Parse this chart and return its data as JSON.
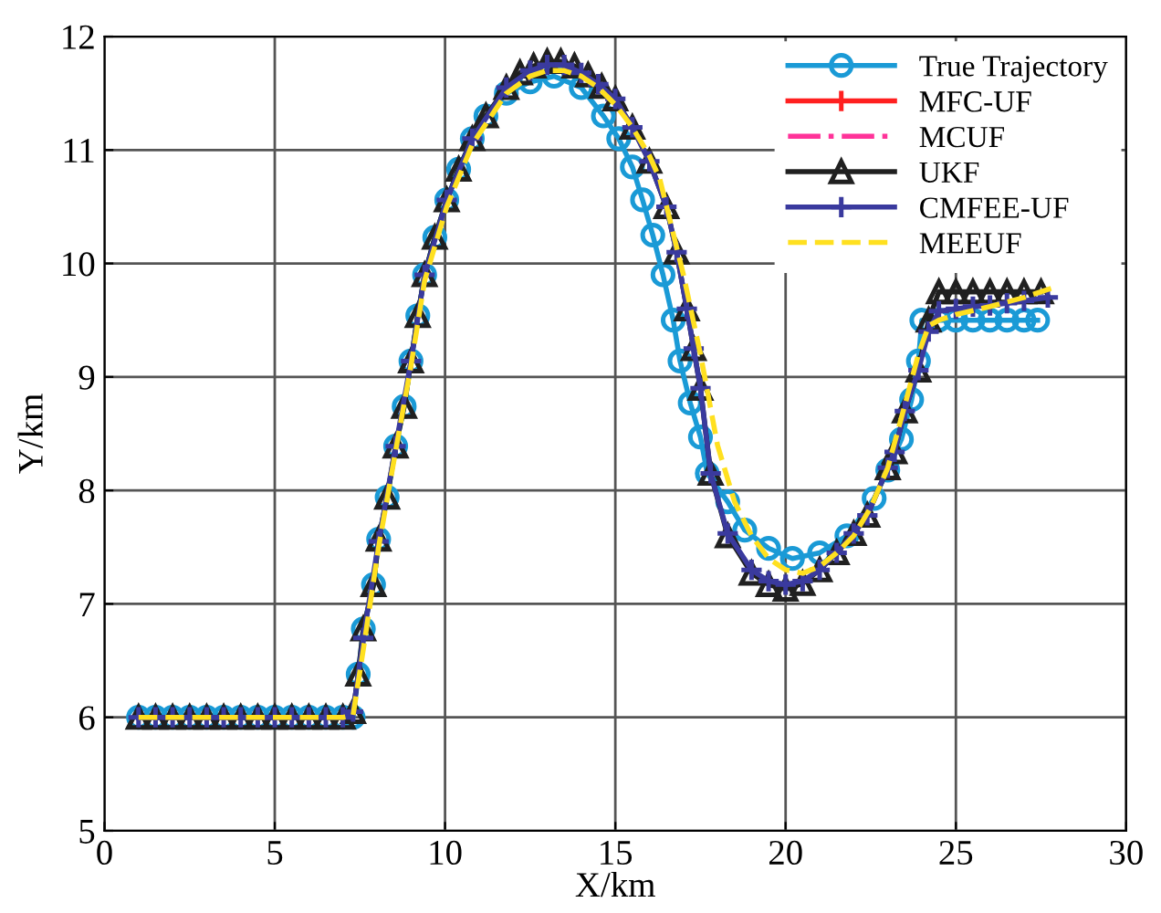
{
  "chart_data": {
    "type": "line",
    "xlabel": "X/km",
    "ylabel": "Y/km",
    "xlim": [
      0,
      30
    ],
    "ylim": [
      5,
      12
    ],
    "xticks": [
      0,
      5,
      10,
      15,
      20,
      25,
      30
    ],
    "yticks": [
      5,
      6,
      7,
      8,
      9,
      10,
      11,
      12
    ],
    "grid": true,
    "legend": "top right",
    "series": [
      {
        "name": "True Trajectory",
        "color": "#1a9ad6",
        "marker": "circle",
        "line_style": "solid",
        "x": [
          1,
          1.5,
          2,
          2.5,
          3,
          3.5,
          4,
          4.5,
          5,
          5.5,
          6,
          6.5,
          7,
          7.3,
          7.45,
          7.6,
          7.9,
          8.05,
          8.3,
          8.55,
          8.8,
          9.0,
          9.2,
          9.4,
          9.7,
          10.05,
          10.4,
          10.8,
          11.2,
          11.8,
          12.5,
          13.2,
          14,
          14.65,
          15.1,
          15.5,
          15.8,
          16.1,
          16.4,
          16.7,
          16.9,
          17.2,
          17.5,
          17.7,
          18.3,
          18.8,
          19.5,
          20.2,
          21,
          21.8,
          22.6,
          23,
          23.4,
          23.7,
          23.9,
          24.0,
          24.5,
          25,
          25.5,
          26,
          26.5,
          27,
          27.4
        ],
        "values": [
          6,
          6,
          6,
          6,
          6,
          6,
          6,
          6,
          6,
          6,
          6,
          6,
          6,
          6,
          6.38,
          6.78,
          7.17,
          7.57,
          7.94,
          8.39,
          8.74,
          9.14,
          9.54,
          9.9,
          10.23,
          10.56,
          10.83,
          11.1,
          11.3,
          11.5,
          11.6,
          11.65,
          11.55,
          11.3,
          11.1,
          10.85,
          10.56,
          10.25,
          9.9,
          9.5,
          9.14,
          8.77,
          8.47,
          8.15,
          7.9,
          7.65,
          7.49,
          7.4,
          7.45,
          7.6,
          7.93,
          8.18,
          8.45,
          8.8,
          9.14,
          9.5,
          9.5,
          9.5,
          9.5,
          9.5,
          9.5,
          9.5,
          9.5
        ]
      },
      {
        "name": "MFC-UF",
        "color": "#ff2020",
        "marker": "cross",
        "line_style": "solid"
      },
      {
        "name": "MCUF",
        "color": "#ff3399",
        "marker": "none",
        "line_style": "dashdot"
      },
      {
        "name": "UKF",
        "color": "#202020",
        "marker": "triangle",
        "line_style": "solid",
        "x": [
          1,
          1.5,
          2,
          2.5,
          3,
          3.5,
          4,
          4.5,
          5,
          5.5,
          6,
          6.5,
          7,
          7.3,
          7.45,
          7.6,
          7.9,
          8.05,
          8.3,
          8.55,
          8.8,
          9.0,
          9.2,
          9.4,
          9.7,
          10.05,
          10.4,
          10.8,
          11.2,
          11.8,
          12.2,
          12.6,
          13,
          13.4,
          13.8,
          14.2,
          14.6,
          15,
          15.5,
          16,
          16.5,
          16.8,
          17.1,
          17.3,
          17.5,
          17.8,
          18.3,
          19,
          19.5,
          20,
          20.5,
          21,
          21.5,
          22,
          22.4,
          23,
          23.2,
          23.5,
          23.9,
          24.2,
          24.5,
          25,
          25.5,
          26,
          26.5,
          27,
          27.5
        ],
        "values": [
          6,
          6,
          6,
          6,
          6,
          6,
          6,
          6,
          6,
          6,
          6,
          6,
          6,
          6.05,
          6.38,
          6.78,
          7.17,
          7.57,
          7.94,
          8.39,
          8.74,
          9.14,
          9.54,
          9.9,
          10.23,
          10.56,
          10.83,
          11.1,
          11.3,
          11.55,
          11.68,
          11.74,
          11.78,
          11.78,
          11.74,
          11.66,
          11.56,
          11.45,
          11.2,
          10.9,
          10.5,
          10.1,
          9.6,
          9.25,
          8.9,
          8.15,
          7.6,
          7.27,
          7.17,
          7.13,
          7.18,
          7.3,
          7.45,
          7.62,
          7.78,
          8.2,
          8.34,
          8.7,
          9.06,
          9.5,
          9.75,
          9.75,
          9.75,
          9.75,
          9.75,
          9.75,
          9.75
        ]
      },
      {
        "name": "CMFEE-UF",
        "color": "#3a3a9e",
        "marker": "cross",
        "line_style": "solid",
        "x": [
          1,
          1.5,
          2,
          2.5,
          3,
          3.5,
          4,
          4.5,
          5,
          5.5,
          6,
          6.5,
          7,
          7.3,
          7.6,
          8.05,
          8.55,
          9.0,
          9.4,
          10.05,
          10.8,
          11.8,
          12.5,
          13,
          13.5,
          14,
          14.5,
          15,
          15.5,
          16,
          16.5,
          16.8,
          17.1,
          17.3,
          17.5,
          17.8,
          18.3,
          19,
          19.5,
          20,
          20.5,
          21,
          21.5,
          22,
          22.4,
          23,
          23.2,
          23.5,
          23.9,
          24.2,
          24.5,
          25,
          25.5,
          26,
          26.5,
          27,
          27.7
        ],
        "values": [
          6,
          6,
          6,
          6,
          6,
          6,
          6,
          6,
          6,
          6,
          6,
          6,
          6,
          6.05,
          6.7,
          7.55,
          8.39,
          9.14,
          9.9,
          10.56,
          11.1,
          11.55,
          11.7,
          11.75,
          11.75,
          11.68,
          11.58,
          11.45,
          11.2,
          10.9,
          10.5,
          10.1,
          9.6,
          9.25,
          8.9,
          8.15,
          7.62,
          7.3,
          7.2,
          7.17,
          7.2,
          7.3,
          7.45,
          7.62,
          7.78,
          8.2,
          8.34,
          8.7,
          9.06,
          9.4,
          9.58,
          9.6,
          9.62,
          9.63,
          9.65,
          9.67,
          9.7
        ]
      },
      {
        "name": "MEEUF",
        "color": "#ffe020",
        "marker": "none",
        "line_style": "dashed",
        "x": [
          1,
          2,
          3,
          4,
          5,
          6,
          7,
          7.3,
          7.6,
          8.05,
          8.55,
          9.0,
          9.4,
          10.05,
          10.8,
          11.8,
          12.5,
          13,
          13.5,
          14,
          14.5,
          15,
          15.5,
          16,
          16.3,
          17,
          17.5,
          18,
          18.5,
          19,
          19.5,
          20,
          20.5,
          21,
          21.5,
          22,
          22.5,
          23,
          23.5,
          23.9,
          24.2,
          24.5,
          25,
          26,
          27,
          28
        ],
        "values": [
          6,
          6,
          6,
          6,
          6,
          6,
          6,
          6.02,
          6.6,
          7.5,
          8.35,
          9.1,
          9.85,
          10.5,
          11.05,
          11.5,
          11.65,
          11.7,
          11.7,
          11.65,
          11.55,
          11.4,
          11.2,
          10.95,
          10.75,
          9.9,
          9.2,
          8.4,
          7.9,
          7.6,
          7.4,
          7.3,
          7.27,
          7.33,
          7.45,
          7.6,
          7.85,
          8.2,
          8.75,
          9.2,
          9.45,
          9.5,
          9.55,
          9.62,
          9.7,
          9.8
        ]
      }
    ]
  }
}
